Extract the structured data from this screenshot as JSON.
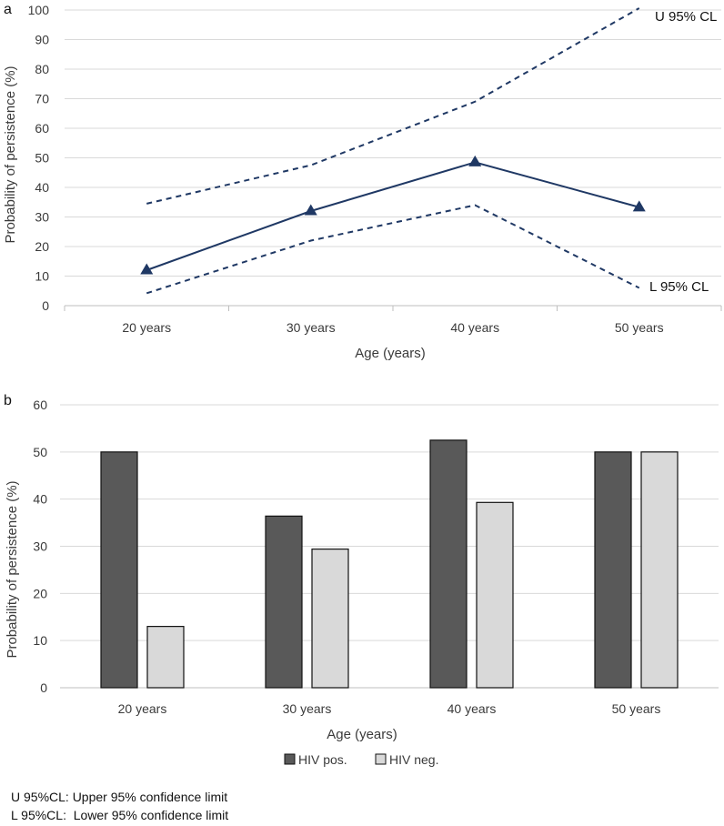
{
  "chart_data": [
    {
      "type": "line",
      "panel_label": "a",
      "categories": [
        "20 years",
        "30 years",
        "40 years",
        "50 years"
      ],
      "series": [
        {
          "name": "Probability",
          "style": "solid-triangle",
          "values": [
            12,
            32,
            48.5,
            33.3
          ]
        },
        {
          "name": "U 95% CL",
          "style": "dashed",
          "values": [
            34.5,
            47.5,
            69,
            101
          ]
        },
        {
          "name": "L 95% CL",
          "style": "dashed",
          "values": [
            4.2,
            22,
            34,
            6
          ]
        }
      ],
      "upper_label": "U 95% CL",
      "lower_label": "L 95% CL",
      "xlabel": "Age (years)",
      "ylabel": "Probability of persistence (%)",
      "ylim": [
        0,
        100
      ],
      "yticks": [
        0,
        10,
        20,
        30,
        40,
        50,
        60,
        70,
        80,
        90,
        100
      ],
      "grid": true,
      "color": "#1f3864"
    },
    {
      "type": "bar",
      "panel_label": "b",
      "categories": [
        "20 years",
        "30 years",
        "40 years",
        "50 years"
      ],
      "series": [
        {
          "name": "HIV pos.",
          "color": "#595959",
          "values": [
            50,
            36.4,
            52.5,
            50
          ]
        },
        {
          "name": "HIV neg.",
          "color": "#d9d9d9",
          "values": [
            13,
            29.4,
            39.3,
            50
          ]
        }
      ],
      "xlabel": "Age (years)",
      "ylabel": "Probability of persistence (%)",
      "ylim": [
        0,
        60
      ],
      "yticks": [
        0,
        10,
        20,
        30,
        40,
        50,
        60
      ],
      "grid": true,
      "legend": "bottom-center"
    }
  ],
  "footnotes": {
    "upper": "U 95%CL: Upper 95% confidence limit",
    "lower": "L 95%CL:  Lower 95% confidence limit"
  }
}
